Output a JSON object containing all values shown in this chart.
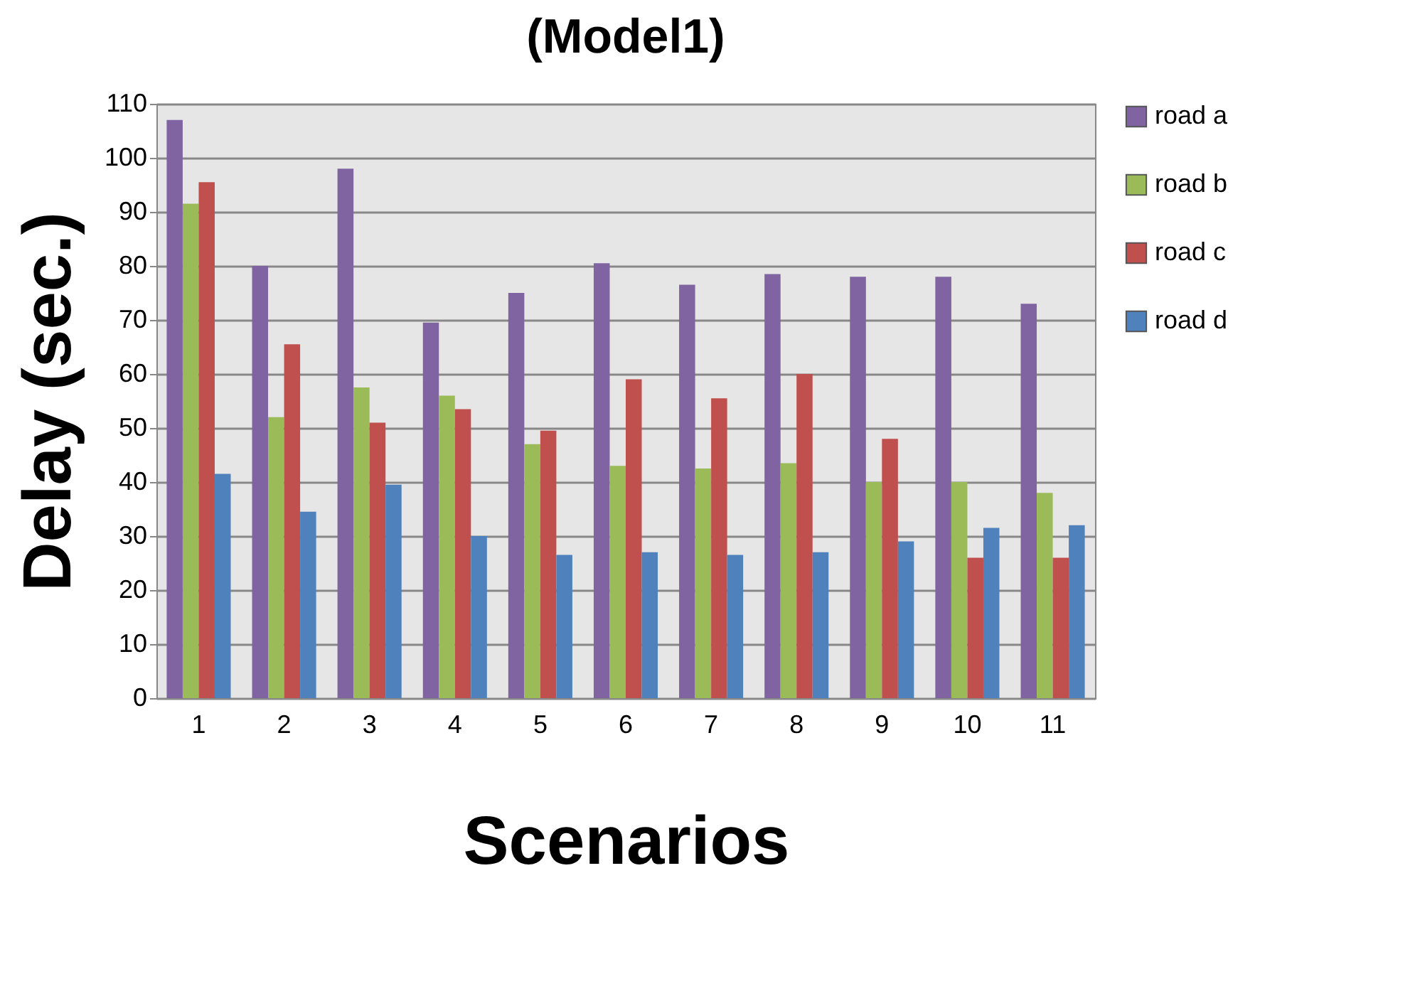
{
  "chart_data": {
    "type": "bar",
    "title": "(Model1)",
    "xlabel": "Scenarios",
    "ylabel": "Delay (sec.)",
    "categories": [
      "1",
      "2",
      "3",
      "4",
      "5",
      "6",
      "7",
      "8",
      "9",
      "10",
      "11"
    ],
    "series": [
      {
        "name": "road a",
        "color": "#8064a2",
        "values": [
          107,
          80,
          98,
          69.5,
          75,
          80.5,
          76.5,
          78.5,
          78,
          78,
          73
        ]
      },
      {
        "name": "road b",
        "color": "#9bbb59",
        "values": [
          91.5,
          52,
          57.5,
          56,
          47,
          43,
          42.5,
          43.5,
          40,
          40,
          38
        ]
      },
      {
        "name": "road c",
        "color": "#c0504d",
        "values": [
          95.5,
          65.5,
          51,
          53.5,
          49.5,
          59,
          55.5,
          60,
          48,
          26,
          26
        ]
      },
      {
        "name": "road d",
        "color": "#4f81bd",
        "values": [
          41.5,
          34.5,
          39.5,
          30,
          26.5,
          27,
          26.5,
          27,
          29,
          31.5,
          32
        ]
      }
    ],
    "ylim": [
      0,
      110
    ],
    "yticks": [
      0,
      10,
      20,
      30,
      40,
      50,
      60,
      70,
      80,
      90,
      100,
      110
    ],
    "grid": "y",
    "legend": "right"
  }
}
